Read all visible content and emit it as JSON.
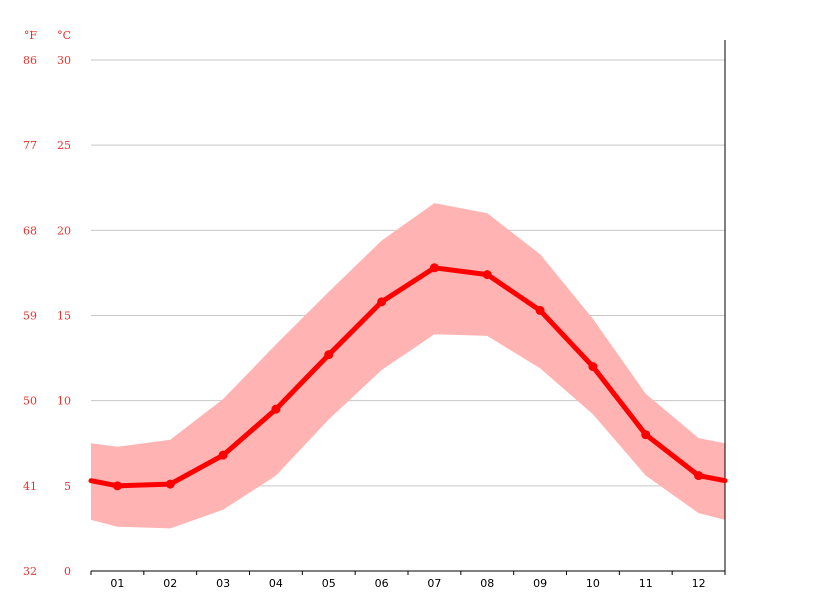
{
  "chart_data": {
    "type": "line",
    "units": {
      "fahrenheit_label": "°F",
      "celsius_label": "°C"
    },
    "categories": [
      "01",
      "02",
      "03",
      "04",
      "05",
      "06",
      "07",
      "08",
      "09",
      "10",
      "11",
      "12"
    ],
    "ylim_celsius": [
      0,
      30
    ],
    "y_ticks_celsius": [
      "0",
      "5",
      "10",
      "15",
      "20",
      "25",
      "30"
    ],
    "y_ticks_fahrenheit": [
      "32",
      "41",
      "50",
      "59",
      "68",
      "77",
      "86"
    ],
    "grid": true,
    "series": [
      {
        "kind": "mean",
        "color": "#ff0000",
        "values": [
          5.0,
          5.1,
          6.8,
          9.5,
          12.7,
          15.8,
          17.8,
          17.4,
          15.3,
          12.0,
          8.0,
          5.6
        ],
        "edge_values": [
          5.3,
          5.3
        ]
      },
      {
        "kind": "band_high",
        "color": "#ffb3b3",
        "values": [
          7.3,
          7.7,
          10.1,
          13.3,
          16.4,
          19.4,
          21.6,
          21.0,
          18.6,
          14.8,
          10.4,
          7.8
        ],
        "edge_values": [
          7.5,
          7.5
        ]
      },
      {
        "kind": "band_low",
        "color": "#ffb3b3",
        "values": [
          2.6,
          2.5,
          3.6,
          5.6,
          8.9,
          11.8,
          13.9,
          13.8,
          11.9,
          9.2,
          5.6,
          3.4
        ],
        "edge_values": [
          3.0,
          3.0
        ]
      }
    ]
  }
}
